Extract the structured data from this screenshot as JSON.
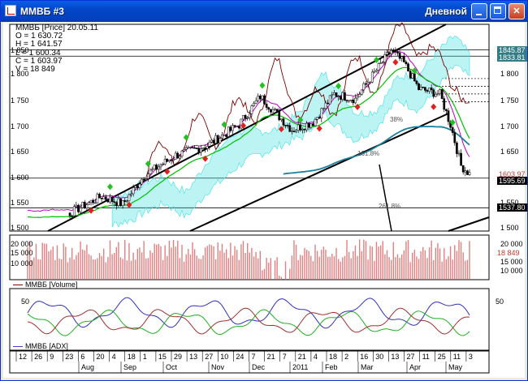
{
  "window": {
    "title": "ММВБ #3",
    "timeframe": "Дневной"
  },
  "hud": {
    "line1": "ММВБ [Price] 20.05.11",
    "line2": "O = 1 630.72",
    "line3": "H = 1 641.57",
    "line4": "L = 1 600.34",
    "line5": "C = 1 603.97",
    "line6": "V = 18 849"
  },
  "price_axis": {
    "ticks": [
      "1 850",
      "1 800",
      "1 750",
      "1 700",
      "1 650",
      "1 600",
      "1 550",
      "1 500"
    ],
    "badge_top": "1845.87",
    "badge_second": "1833.81",
    "badge_low1": "1603.97",
    "badge_low2": "1595.69",
    "badge_low3": "1537.80"
  },
  "fib_labels": {
    "level_a": "161.8%",
    "level_b": "261.8%",
    "level_c": "38%"
  },
  "volume_pane": {
    "label": "ММВБ [Volume]",
    "ticks": [
      "20 000",
      "15 000",
      "10 000"
    ],
    "badge_left": "15 000",
    "badge_value": "18 849",
    "badge_right_ticks": [
      "20 000",
      "15 000",
      "10 000"
    ]
  },
  "adx_pane": {
    "label": "ММВБ [ADX]",
    "tick_left": "50",
    "tick_right": "50"
  },
  "x_axis": {
    "days": [
      "12",
      "26",
      "9",
      "23",
      "6",
      "20",
      "4",
      "18",
      "1",
      "15",
      "29",
      "13",
      "27",
      "10",
      "24",
      "7",
      "21",
      "7",
      "21",
      "4",
      "18",
      "2",
      "16",
      "30",
      "13",
      "27",
      "11",
      "25",
      "11",
      "3"
    ],
    "months": [
      "Aug",
      "Sep",
      "Oct",
      "Nov",
      "Dec",
      "2011",
      "Feb",
      "Mar",
      "Apr",
      "May"
    ]
  },
  "colors": {
    "candle_up": "#000000",
    "ema_green": "#00c000",
    "ema_magenta": "#c000c0",
    "ma_brown": "#800000",
    "ma_teal": "#1a7fa0",
    "cloud": "#40e0e0",
    "volume_bar": "#e08080"
  }
}
